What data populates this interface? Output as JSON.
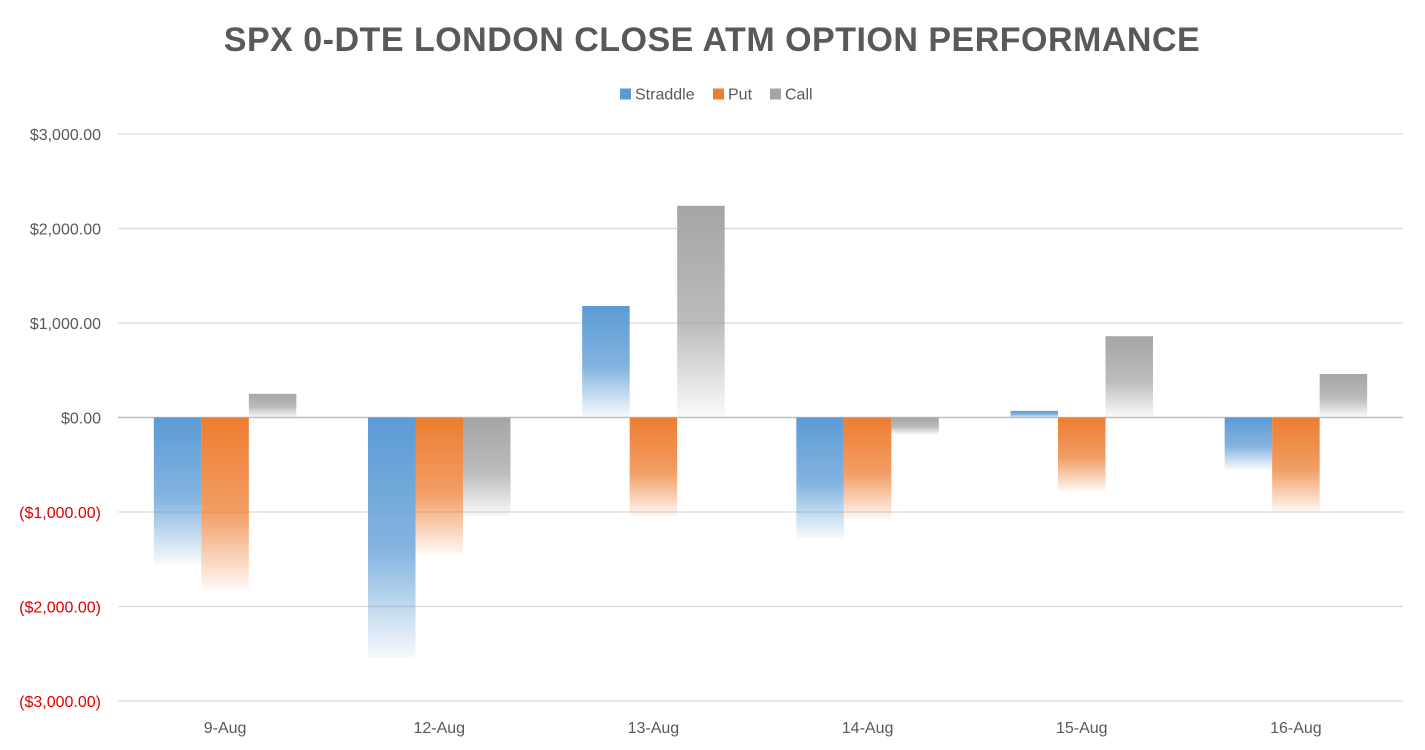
{
  "colors": {
    "straddle": "#5b9bd5",
    "put": "#ed7d31",
    "call": "#a5a5a5",
    "negative_label": "#e00000",
    "text": "#595959"
  },
  "chart_data": {
    "type": "bar",
    "title": "SPX 0-DTE  LONDON CLOSE ATM OPTION PERFORMANCE",
    "xlabel": "",
    "ylabel": "",
    "categories": [
      "9-Aug",
      "12-Aug",
      "13-Aug",
      "14-Aug",
      "15-Aug",
      "16-Aug"
    ],
    "series": [
      {
        "name": "Straddle",
        "values": [
          -1550,
          -2550,
          1180,
          -1280,
          70,
          -550
        ]
      },
      {
        "name": "Put",
        "values": [
          -1820,
          -1450,
          -1050,
          -1080,
          -780,
          -1000
        ]
      },
      {
        "name": "Call",
        "values": [
          250,
          -1050,
          2240,
          -180,
          860,
          460
        ]
      }
    ],
    "ylim": [
      -3000,
      3000
    ],
    "yticks": [
      3000,
      2000,
      1000,
      0,
      -1000,
      -2000,
      -3000
    ],
    "ytick_labels": [
      "$3,000.00",
      "$2,000.00",
      "$1,000.00",
      "$0.00",
      "($1,000.00)",
      "($2,000.00)",
      "($3,000.00)"
    ],
    "grid": true,
    "legend": "top-center",
    "bar_style": "gradient fading toward the end of each bar"
  }
}
